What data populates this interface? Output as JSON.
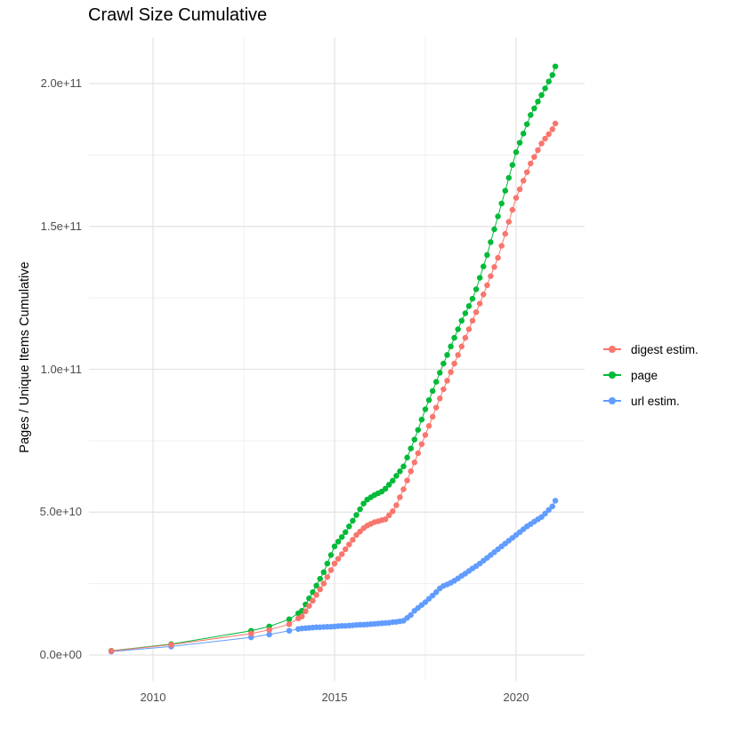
{
  "title": "Crawl Size Cumulative",
  "chart_data": {
    "type": "scatter",
    "title": "Crawl Size Cumulative",
    "xlabel": "",
    "ylabel": "Pages / Unique Items Cumulative",
    "grid": "on",
    "background": "#ffffff",
    "grid_major_color": "#e3e3e3",
    "grid_minor_color": "#f0f0f0",
    "x_axis": {
      "tick_labels": [
        "2010",
        "2015",
        "2020"
      ],
      "tick_values": [
        2010,
        2015,
        2020
      ],
      "minor_values": [
        2012.5,
        2017.5
      ],
      "range": [
        2008.2,
        2021.9
      ]
    },
    "y_axis": {
      "tick_labels": [
        "0.0e+00",
        "5.0e+10",
        "1.0e+11",
        "1.5e+11",
        "2.0e+11"
      ],
      "tick_values": [
        0,
        50000000000.0,
        100000000000.0,
        150000000000.0,
        200000000000.0
      ],
      "minor_values": [
        25000000000.0,
        75000000000.0,
        125000000000.0,
        175000000000.0
      ],
      "range": [
        -9000000000.0,
        217000000000.0
      ]
    },
    "legend": {
      "position": "right"
    },
    "series": [
      {
        "name": "digest estim.",
        "color": "#F8766D",
        "points": [
          [
            2008.85,
            1400000000.0
          ],
          [
            2010.5,
            3600000000.0
          ],
          [
            2012.7,
            7500000000.0
          ],
          [
            2013.2,
            8800000000.0
          ],
          [
            2013.75,
            10800000000.0
          ],
          [
            2014.0,
            12800000000.0
          ],
          [
            2014.1,
            13500000000.0
          ],
          [
            2014.2,
            15300000000.0
          ],
          [
            2014.3,
            17200000000.0
          ],
          [
            2014.4,
            19000000000.0
          ],
          [
            2014.5,
            21000000000.0
          ],
          [
            2014.6,
            23000000000.0
          ],
          [
            2014.7,
            25000000000.0
          ],
          [
            2014.8,
            27300000000.0
          ],
          [
            2014.9,
            29700000000.0
          ],
          [
            2015.0,
            32000000000.0
          ],
          [
            2015.1,
            33700000000.0
          ],
          [
            2015.2,
            35300000000.0
          ],
          [
            2015.3,
            37000000000.0
          ],
          [
            2015.4,
            38700000000.0
          ],
          [
            2015.5,
            40300000000.0
          ],
          [
            2015.6,
            42000000000.0
          ],
          [
            2015.7,
            43200000000.0
          ],
          [
            2015.8,
            44400000000.0
          ],
          [
            2015.9,
            45300000000.0
          ],
          [
            2016.0,
            45900000000.0
          ],
          [
            2016.1,
            46500000000.0
          ],
          [
            2016.2,
            46800000000.0
          ],
          [
            2016.3,
            47200000000.0
          ],
          [
            2016.4,
            47500000000.0
          ],
          [
            2016.5,
            48900000000.0
          ],
          [
            2016.6,
            50300000000.0
          ],
          [
            2016.7,
            52400000000.0
          ],
          [
            2016.8,
            55200000000.0
          ],
          [
            2016.9,
            58000000000.0
          ],
          [
            2017.0,
            61100000000.0
          ],
          [
            2017.1,
            64300000000.0
          ],
          [
            2017.2,
            67400000000.0
          ],
          [
            2017.3,
            70600000000.0
          ],
          [
            2017.4,
            73800000000.0
          ],
          [
            2017.5,
            77000000000.0
          ],
          [
            2017.6,
            80200000000.0
          ],
          [
            2017.7,
            83400000000.0
          ],
          [
            2017.8,
            86600000000.0
          ],
          [
            2017.9,
            89800000000.0
          ],
          [
            2018.0,
            93000000000.0
          ],
          [
            2018.1,
            96000000000.0
          ],
          [
            2018.2,
            99000000000.0
          ],
          [
            2018.3,
            102000000000.0
          ],
          [
            2018.4,
            105000000000.0
          ],
          [
            2018.5,
            108000000000.0
          ],
          [
            2018.6,
            111000000000.0
          ],
          [
            2018.7,
            114000000000.0
          ],
          [
            2018.8,
            117000000000.0
          ],
          [
            2018.9,
            120000000000.0
          ],
          [
            2019.0,
            123000000000.0
          ],
          [
            2019.1,
            126200000000.0
          ],
          [
            2019.2,
            129400000000.0
          ],
          [
            2019.3,
            132600000000.0
          ],
          [
            2019.4,
            135800000000.0
          ],
          [
            2019.5,
            139000000000.0
          ],
          [
            2019.6,
            143200000000.0
          ],
          [
            2019.7,
            147400000000.0
          ],
          [
            2019.8,
            151600000000.0
          ],
          [
            2019.9,
            155800000000.0
          ],
          [
            2020.0,
            160000000000.0
          ],
          [
            2020.1,
            163000000000.0
          ],
          [
            2020.2,
            166000000000.0
          ],
          [
            2020.3,
            169000000000.0
          ],
          [
            2020.4,
            172000000000.0
          ],
          [
            2020.5,
            174300000000.0
          ],
          [
            2020.6,
            176700000000.0
          ],
          [
            2020.7,
            179000000000.0
          ],
          [
            2020.8,
            180700000000.0
          ],
          [
            2020.9,
            182300000000.0
          ],
          [
            2021.0,
            184000000000.0
          ],
          [
            2021.08,
            186000000000.0
          ]
        ]
      },
      {
        "name": "page",
        "color": "#00BA38",
        "points": [
          [
            2008.85,
            1500000000.0
          ],
          [
            2010.5,
            3800000000.0
          ],
          [
            2012.7,
            8500000000.0
          ],
          [
            2013.2,
            10000000000.0
          ],
          [
            2013.75,
            12500000000.0
          ],
          [
            2014.0,
            14600000000.0
          ],
          [
            2014.1,
            15500000000.0
          ],
          [
            2014.2,
            17700000000.0
          ],
          [
            2014.3,
            19800000000.0
          ],
          [
            2014.4,
            22000000000.0
          ],
          [
            2014.5,
            24300000000.0
          ],
          [
            2014.6,
            26700000000.0
          ],
          [
            2014.7,
            29000000000.0
          ],
          [
            2014.8,
            32000000000.0
          ],
          [
            2014.9,
            35000000000.0
          ],
          [
            2015.0,
            38000000000.0
          ],
          [
            2015.1,
            39700000000.0
          ],
          [
            2015.2,
            41300000000.0
          ],
          [
            2015.3,
            43000000000.0
          ],
          [
            2015.4,
            45000000000.0
          ],
          [
            2015.5,
            47000000000.0
          ],
          [
            2015.6,
            49000000000.0
          ],
          [
            2015.7,
            51000000000.0
          ],
          [
            2015.8,
            53000000000.0
          ],
          [
            2015.9,
            54400000000.0
          ],
          [
            2016.0,
            55200000000.0
          ],
          [
            2016.1,
            56000000000.0
          ],
          [
            2016.2,
            56600000000.0
          ],
          [
            2016.3,
            57200000000.0
          ],
          [
            2016.4,
            58200000000.0
          ],
          [
            2016.5,
            59600000000.0
          ],
          [
            2016.6,
            61000000000.0
          ],
          [
            2016.7,
            62700000000.0
          ],
          [
            2016.8,
            64300000000.0
          ],
          [
            2016.9,
            66000000000.0
          ],
          [
            2017.0,
            69100000000.0
          ],
          [
            2017.1,
            72300000000.0
          ],
          [
            2017.2,
            75400000000.0
          ],
          [
            2017.3,
            78800000000.0
          ],
          [
            2017.4,
            82400000000.0
          ],
          [
            2017.5,
            86000000000.0
          ],
          [
            2017.6,
            89200000000.0
          ],
          [
            2017.7,
            92400000000.0
          ],
          [
            2017.8,
            95600000000.0
          ],
          [
            2017.9,
            98800000000.0
          ],
          [
            2018.0,
            102000000000.0
          ],
          [
            2018.1,
            105000000000.0
          ],
          [
            2018.2,
            108000000000.0
          ],
          [
            2018.3,
            111000000000.0
          ],
          [
            2018.4,
            114000000000.0
          ],
          [
            2018.5,
            117000000000.0
          ],
          [
            2018.6,
            119600000000.0
          ],
          [
            2018.7,
            122100000000.0
          ],
          [
            2018.8,
            124700000000.0
          ],
          [
            2018.9,
            128000000000.0
          ],
          [
            2019.0,
            132000000000.0
          ],
          [
            2019.1,
            136000000000.0
          ],
          [
            2019.2,
            140000000000.0
          ],
          [
            2019.3,
            144500000000.0
          ],
          [
            2019.4,
            149000000000.0
          ],
          [
            2019.5,
            153500000000.0
          ],
          [
            2019.6,
            158000000000.0
          ],
          [
            2019.7,
            162500000000.0
          ],
          [
            2019.8,
            167000000000.0
          ],
          [
            2019.9,
            171500000000.0
          ],
          [
            2020.0,
            176000000000.0
          ],
          [
            2020.1,
            179300000000.0
          ],
          [
            2020.2,
            182500000000.0
          ],
          [
            2020.3,
            185800000000.0
          ],
          [
            2020.4,
            189000000000.0
          ],
          [
            2020.5,
            191300000000.0
          ],
          [
            2020.6,
            193700000000.0
          ],
          [
            2020.7,
            196000000000.0
          ],
          [
            2020.8,
            198300000000.0
          ],
          [
            2020.9,
            200700000000.0
          ],
          [
            2021.0,
            203000000000.0
          ],
          [
            2021.08,
            206000000000.0
          ]
        ]
      },
      {
        "name": "url estim.",
        "color": "#619CFF",
        "points": [
          [
            2008.85,
            1200000000.0
          ],
          [
            2010.5,
            3000000000.0
          ],
          [
            2012.7,
            6200000000.0
          ],
          [
            2013.2,
            7200000000.0
          ],
          [
            2013.75,
            8500000000.0
          ],
          [
            2014.0,
            9100000000.0
          ],
          [
            2014.1,
            9300000000.0
          ],
          [
            2014.2,
            9400000000.0
          ],
          [
            2014.3,
            9500000000.0
          ],
          [
            2014.4,
            9600000000.0
          ],
          [
            2014.5,
            9700000000.0
          ],
          [
            2014.6,
            9750000000.0
          ],
          [
            2014.7,
            9800000000.0
          ],
          [
            2014.8,
            9850000000.0
          ],
          [
            2014.9,
            9900000000.0
          ],
          [
            2015.0,
            10000000000.0
          ],
          [
            2015.1,
            10100000000.0
          ],
          [
            2015.2,
            10200000000.0
          ],
          [
            2015.3,
            10200000000.0
          ],
          [
            2015.4,
            10300000000.0
          ],
          [
            2015.5,
            10400000000.0
          ],
          [
            2015.6,
            10500000000.0
          ],
          [
            2015.7,
            10600000000.0
          ],
          [
            2015.8,
            10600000000.0
          ],
          [
            2015.9,
            10700000000.0
          ],
          [
            2016.0,
            10800000000.0
          ],
          [
            2016.1,
            10900000000.0
          ],
          [
            2016.2,
            11000000000.0
          ],
          [
            2016.3,
            11100000000.0
          ],
          [
            2016.4,
            11200000000.0
          ],
          [
            2016.5,
            11300000000.0
          ],
          [
            2016.6,
            11500000000.0
          ],
          [
            2016.7,
            11600000000.0
          ],
          [
            2016.8,
            11800000000.0
          ],
          [
            2016.9,
            12000000000.0
          ],
          [
            2017.0,
            13000000000.0
          ],
          [
            2017.1,
            14000000000.0
          ],
          [
            2017.2,
            15500000000.0
          ],
          [
            2017.3,
            16500000000.0
          ],
          [
            2017.4,
            17500000000.0
          ],
          [
            2017.5,
            18500000000.0
          ],
          [
            2017.6,
            19700000000.0
          ],
          [
            2017.7,
            20800000000.0
          ],
          [
            2017.8,
            22000000000.0
          ],
          [
            2017.9,
            23300000000.0
          ],
          [
            2018.0,
            24200000000.0
          ],
          [
            2018.1,
            24700000000.0
          ],
          [
            2018.2,
            25300000000.0
          ],
          [
            2018.3,
            26000000000.0
          ],
          [
            2018.4,
            26800000000.0
          ],
          [
            2018.5,
            27700000000.0
          ],
          [
            2018.6,
            28500000000.0
          ],
          [
            2018.7,
            29400000000.0
          ],
          [
            2018.8,
            30300000000.0
          ],
          [
            2018.9,
            31100000000.0
          ],
          [
            2019.0,
            32000000000.0
          ],
          [
            2019.1,
            33000000000.0
          ],
          [
            2019.2,
            34000000000.0
          ],
          [
            2019.3,
            35000000000.0
          ],
          [
            2019.4,
            36000000000.0
          ],
          [
            2019.5,
            37000000000.0
          ],
          [
            2019.6,
            38000000000.0
          ],
          [
            2019.7,
            39000000000.0
          ],
          [
            2019.8,
            40000000000.0
          ],
          [
            2019.9,
            41000000000.0
          ],
          [
            2020.0,
            42000000000.0
          ],
          [
            2020.1,
            43000000000.0
          ],
          [
            2020.2,
            44000000000.0
          ],
          [
            2020.3,
            45000000000.0
          ],
          [
            2020.4,
            45800000000.0
          ],
          [
            2020.5,
            46700000000.0
          ],
          [
            2020.6,
            47500000000.0
          ],
          [
            2020.7,
            48300000000.0
          ],
          [
            2020.8,
            49500000000.0
          ],
          [
            2020.9,
            50800000000.0
          ],
          [
            2021.0,
            52000000000.0
          ],
          [
            2021.08,
            54000000000.0
          ]
        ]
      }
    ]
  }
}
